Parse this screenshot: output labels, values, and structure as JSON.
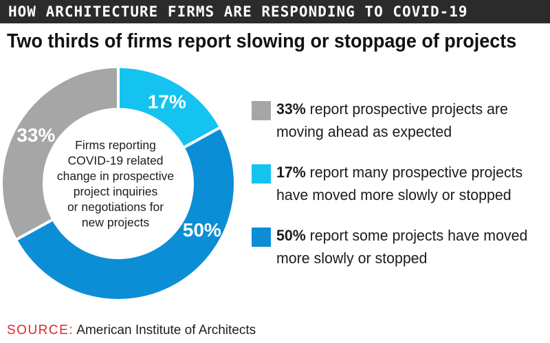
{
  "banner": {
    "title": "HOW ARCHITECTURE FIRMS ARE RESPONDING TO COVID-19"
  },
  "headline": "Two thirds of firms report slowing or stoppage of projects",
  "colors": {
    "gray": "#a6a6a6",
    "cyan": "#14c3ef",
    "blue": "#0b8ed6",
    "source_red": "#e0262b",
    "banner_bg": "#2b2b2b"
  },
  "chart_data": {
    "type": "pie",
    "variant": "donut",
    "center_label": "Firms reporting COVID-19 related change in prospective project inquiries or negotiations for new projects",
    "center_lines": [
      "Firms reporting",
      "COVID-19 related",
      "change in prospective",
      "project inquiries",
      "or negotiations for",
      "new projects"
    ],
    "slices": [
      {
        "value": 17,
        "label": "17%",
        "color": "#14c3ef"
      },
      {
        "value": 50,
        "label": "50%",
        "color": "#0b8ed6"
      },
      {
        "value": 33,
        "label": "33%",
        "color": "#a6a6a6"
      }
    ],
    "legend": [
      {
        "pct": "33%",
        "text": " report prospective projects are moving ahead as expected",
        "color": "#a6a6a6"
      },
      {
        "pct": "17%",
        "text": " report many prospective projects have moved more slowly or stopped",
        "color": "#14c3ef"
      },
      {
        "pct": "50%",
        "text": " report some projects have moved more slowly or stopped",
        "color": "#0b8ed6"
      }
    ]
  },
  "source": {
    "label": "SOURCE:",
    "text": " American Institute of Architects"
  }
}
